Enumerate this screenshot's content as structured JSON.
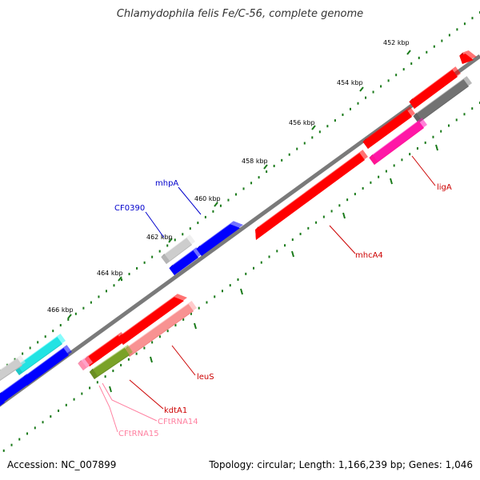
{
  "title": "Chlamydophila felis Fe/C-56, complete genome",
  "footer": {
    "accession": "Accession: NC_007899",
    "summary": "Topology: circular; Length: 1,166,239 bp; Genes: 1,046"
  },
  "colors": {
    "backbone": "#808080",
    "ticks": "#1a7a1a",
    "cds_red": "#ff0000",
    "cds_blue": "#0000ff",
    "cds_gray": "#b4b4b4",
    "cds_dark_gray": "#646464",
    "cds_cyan": "#1ec8c8",
    "rrna_pink": "#ff1493",
    "trna_pink": "#ff8fb0",
    "salmon": "#f08080",
    "olive": "#6b8e23"
  },
  "scale": {
    "unit": "kbp",
    "ticks": [
      {
        "kbp": 452,
        "label": "452 kbp"
      },
      {
        "kbp": 454,
        "label": "454 kbp"
      },
      {
        "kbp": 456,
        "label": "456 kbp"
      },
      {
        "kbp": 458,
        "label": "458 kbp"
      },
      {
        "kbp": 460,
        "label": "460 kbp"
      },
      {
        "kbp": 462,
        "label": "462 kbp"
      },
      {
        "kbp": 464,
        "label": "464 kbp"
      },
      {
        "kbp": 466,
        "label": "466 kbp"
      }
    ]
  },
  "gene_labels": [
    {
      "text": "mhpA",
      "color": "#0000cc"
    },
    {
      "text": "CF0390",
      "color": "#0000cc"
    },
    {
      "text": "ligA",
      "color": "#cc0000"
    },
    {
      "text": "mhcA4",
      "color": "#cc0000"
    },
    {
      "text": "leuS",
      "color": "#cc0000"
    },
    {
      "text": "kdtA1",
      "color": "#cc0000"
    },
    {
      "text": "CFtRNA14",
      "color": "#ff80a0"
    },
    {
      "text": "CFtRNA15",
      "color": "#ff80a0"
    }
  ]
}
